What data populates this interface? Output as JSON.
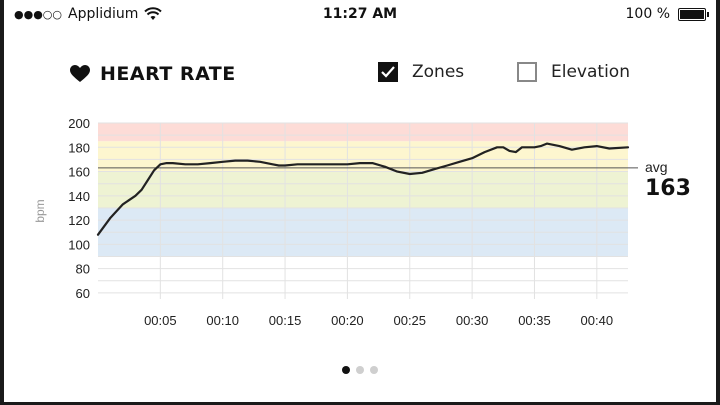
{
  "status_bar": {
    "signal": "●●●○○",
    "carrier": "Applidium",
    "time": "11:27 AM",
    "battery": "100 %"
  },
  "header": {
    "title": "HEART RATE",
    "icon": "heart-icon",
    "toggles": [
      {
        "label": "Zones",
        "checked": true
      },
      {
        "label": "Elevation",
        "checked": false
      }
    ]
  },
  "chart_data": {
    "type": "line",
    "ylabel": "bpm",
    "xlabel": "",
    "ylim": [
      55,
      200
    ],
    "xlim": [
      0,
      42.5
    ],
    "y_ticks": [
      200,
      180,
      160,
      140,
      120,
      100,
      80,
      60
    ],
    "x_ticks": [
      {
        "value": 5,
        "label": "00:05"
      },
      {
        "value": 10,
        "label": "00:10"
      },
      {
        "value": 15,
        "label": "00:15"
      },
      {
        "value": 20,
        "label": "00:20"
      },
      {
        "value": 25,
        "label": "00:25"
      },
      {
        "value": 30,
        "label": "00:30"
      },
      {
        "value": 35,
        "label": "00:35"
      },
      {
        "value": 40,
        "label": "00:40"
      }
    ],
    "zones": [
      {
        "from": 90,
        "to": 130,
        "color": "#dce9f5"
      },
      {
        "from": 130,
        "to": 160,
        "color": "#eef3d3"
      },
      {
        "from": 160,
        "to": 185,
        "color": "#fdf6cf"
      },
      {
        "from": 185,
        "to": 200,
        "color": "#fddcd7"
      }
    ],
    "avg": {
      "label": "avg",
      "value": 163
    },
    "line_color": "#222222",
    "grid": true,
    "series": [
      {
        "x": [
          0,
          1,
          2,
          3,
          3.5,
          4,
          4.5,
          5,
          5.5,
          6,
          7,
          8,
          9,
          10,
          11,
          12,
          13,
          14,
          14.5,
          15,
          16,
          17,
          18,
          19,
          20,
          21,
          22,
          23,
          24,
          25,
          26,
          27,
          28,
          29,
          30,
          31,
          32,
          32.5,
          33,
          33.5,
          34,
          35,
          35.5,
          36,
          37,
          38,
          39,
          40,
          41,
          42.5
        ],
        "y": [
          108,
          122,
          133,
          140,
          145,
          153,
          161,
          166,
          167,
          167,
          166,
          166,
          167,
          168,
          169,
          169,
          168,
          166,
          165,
          165,
          166,
          166,
          166,
          166,
          166,
          167,
          167,
          164,
          160,
          158,
          159,
          162,
          165,
          168,
          171,
          176,
          180,
          180,
          177,
          176,
          180,
          180,
          181,
          183,
          181,
          178,
          180,
          181,
          179,
          180
        ]
      }
    ]
  }
}
